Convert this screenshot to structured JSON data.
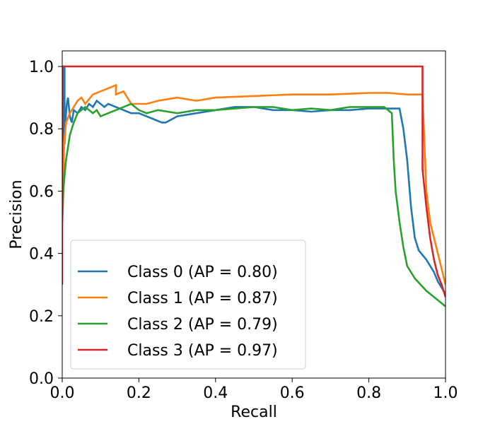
{
  "chart_data": {
    "type": "line",
    "title": "",
    "xlabel": "Recall",
    "ylabel": "Precision",
    "xlim": [
      0.0,
      1.0
    ],
    "ylim": [
      0.0,
      1.05
    ],
    "grid": false,
    "legend_position": "lower-left",
    "xticks": [
      0.0,
      0.2,
      0.4,
      0.6,
      0.8,
      1.0
    ],
    "xtick_labels": [
      "0.0",
      "0.2",
      "0.4",
      "0.6",
      "0.8",
      "1.0"
    ],
    "yticks": [
      0.0,
      0.2,
      0.4,
      0.6,
      0.8,
      1.0
    ],
    "ytick_labels": [
      "0.0",
      "0.2",
      "0.4",
      "0.6",
      "0.8",
      "1.0"
    ],
    "series": [
      {
        "name": "Class 0 (AP = 0.80)",
        "color": "#1f77b4",
        "x": [
          0.0,
          0.003,
          0.006,
          0.006,
          0.01,
          0.012,
          0.015,
          0.02,
          0.025,
          0.03,
          0.04,
          0.05,
          0.06,
          0.07,
          0.08,
          0.09,
          0.1,
          0.11,
          0.12,
          0.14,
          0.16,
          0.18,
          0.2,
          0.22,
          0.24,
          0.26,
          0.27,
          0.3,
          0.35,
          0.4,
          0.45,
          0.5,
          0.55,
          0.6,
          0.65,
          0.7,
          0.75,
          0.8,
          0.85,
          0.88,
          0.89,
          0.9,
          0.91,
          0.92,
          0.93,
          0.95,
          0.97,
          0.98,
          1.0
        ],
        "y": [
          0.5,
          1.0,
          1.0,
          0.75,
          0.85,
          0.88,
          0.9,
          0.84,
          0.82,
          0.86,
          0.85,
          0.87,
          0.86,
          0.88,
          0.87,
          0.89,
          0.88,
          0.87,
          0.88,
          0.87,
          0.86,
          0.85,
          0.85,
          0.84,
          0.83,
          0.82,
          0.82,
          0.84,
          0.85,
          0.86,
          0.87,
          0.87,
          0.86,
          0.86,
          0.855,
          0.86,
          0.86,
          0.865,
          0.865,
          0.865,
          0.8,
          0.7,
          0.55,
          0.45,
          0.41,
          0.38,
          0.34,
          0.31,
          0.27
        ]
      },
      {
        "name": "Class 1 (AP = 0.87)",
        "color": "#ff7f0e",
        "x": [
          0.0,
          0.003,
          0.005,
          0.01,
          0.02,
          0.03,
          0.04,
          0.05,
          0.06,
          0.08,
          0.1,
          0.12,
          0.14,
          0.14,
          0.16,
          0.18,
          0.2,
          0.22,
          0.25,
          0.3,
          0.35,
          0.4,
          0.5,
          0.6,
          0.7,
          0.8,
          0.85,
          0.9,
          0.94,
          0.95,
          0.96,
          0.97,
          0.98,
          0.99,
          1.0
        ],
        "y": [
          0.5,
          0.6,
          0.75,
          0.82,
          0.85,
          0.87,
          0.89,
          0.9,
          0.88,
          0.91,
          0.92,
          0.93,
          0.94,
          0.91,
          0.92,
          0.88,
          0.88,
          0.88,
          0.89,
          0.9,
          0.89,
          0.9,
          0.905,
          0.91,
          0.91,
          0.915,
          0.915,
          0.91,
          0.91,
          0.6,
          0.5,
          0.45,
          0.4,
          0.35,
          0.3
        ]
      },
      {
        "name": "Class 2 (AP = 0.79)",
        "color": "#2ca02c",
        "x": [
          0.0,
          0.003,
          0.006,
          0.01,
          0.02,
          0.03,
          0.04,
          0.05,
          0.06,
          0.07,
          0.08,
          0.09,
          0.1,
          0.12,
          0.14,
          0.16,
          0.18,
          0.2,
          0.22,
          0.25,
          0.3,
          0.35,
          0.4,
          0.45,
          0.5,
          0.55,
          0.6,
          0.65,
          0.7,
          0.75,
          0.8,
          0.84,
          0.86,
          0.865,
          0.87,
          0.88,
          0.89,
          0.9,
          0.92,
          0.95,
          0.98,
          1.0
        ],
        "y": [
          0.5,
          0.6,
          0.65,
          0.7,
          0.78,
          0.82,
          0.85,
          0.86,
          0.87,
          0.86,
          0.85,
          0.86,
          0.84,
          0.85,
          0.86,
          0.87,
          0.88,
          0.86,
          0.85,
          0.86,
          0.85,
          0.86,
          0.86,
          0.865,
          0.87,
          0.87,
          0.86,
          0.865,
          0.86,
          0.87,
          0.87,
          0.87,
          0.85,
          0.7,
          0.6,
          0.5,
          0.42,
          0.36,
          0.32,
          0.28,
          0.25,
          0.23
        ]
      },
      {
        "name": "Class 3 (AP = 0.97)",
        "color": "#d62728",
        "x": [
          0.0,
          0.0,
          0.94,
          0.94,
          0.95,
          0.96,
          0.97,
          0.98,
          0.99,
          1.0
        ],
        "y": [
          0.3,
          1.0,
          1.0,
          0.67,
          0.55,
          0.45,
          0.38,
          0.33,
          0.3,
          0.26
        ]
      }
    ]
  }
}
